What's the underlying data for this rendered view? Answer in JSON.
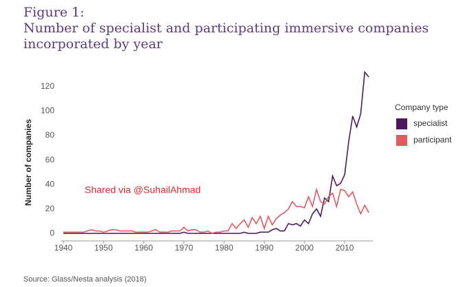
{
  "chart_data": {
    "type": "line",
    "title": "Figure 1:",
    "subtitle": [
      "Number of specialist and participating immersive companies",
      "incorporated by year"
    ],
    "ylabel": "Number of companies",
    "annotation": "Shared via @SuhailAhmad",
    "source": "Source: Glass/Nesta analysis (2018)",
    "legend_title": "Company type",
    "legend": "right",
    "grid": false,
    "x": [
      1940,
      1941,
      1942,
      1943,
      1944,
      1945,
      1946,
      1947,
      1948,
      1949,
      1950,
      1951,
      1952,
      1953,
      1954,
      1955,
      1956,
      1957,
      1958,
      1959,
      1960,
      1961,
      1962,
      1963,
      1964,
      1965,
      1966,
      1967,
      1968,
      1969,
      1970,
      1971,
      1972,
      1973,
      1974,
      1975,
      1976,
      1977,
      1978,
      1979,
      1980,
      1981,
      1982,
      1983,
      1984,
      1985,
      1986,
      1987,
      1988,
      1989,
      1990,
      1991,
      1992,
      1993,
      1994,
      1995,
      1996,
      1997,
      1998,
      1999,
      2000,
      2001,
      2002,
      2003,
      2004,
      2005,
      2006,
      2007,
      2008,
      2009,
      2010,
      2011,
      2012,
      2013,
      2014,
      2015,
      2016
    ],
    "series": [
      {
        "name": "specialist",
        "color": "#4a1a5c",
        "values": [
          0,
          0,
          0,
          0,
          0,
          0,
          0,
          0,
          0,
          0,
          0,
          0,
          0,
          0,
          0,
          0,
          0,
          0,
          0,
          0,
          0,
          0,
          0,
          0,
          0,
          0,
          0,
          0,
          0,
          0,
          1,
          0,
          0,
          0,
          0,
          0,
          0,
          0,
          0,
          0,
          0,
          0,
          0,
          0,
          0,
          1,
          0,
          0,
          0,
          1,
          1,
          1,
          3,
          4,
          2,
          2,
          8,
          7,
          8,
          6,
          11,
          8,
          16,
          20,
          14,
          29,
          26,
          47,
          39,
          41,
          48,
          75,
          96,
          87,
          98,
          132,
          128
        ]
      },
      {
        "name": "participant",
        "color": "#e05a60",
        "values": [
          1,
          1,
          1,
          1,
          1,
          1,
          2,
          3,
          2,
          2,
          1,
          2,
          3,
          3,
          2,
          2,
          2,
          2,
          1,
          1,
          1,
          1,
          2,
          3,
          1,
          1,
          1,
          2,
          2,
          2,
          5,
          2,
          3,
          3,
          1,
          1,
          2,
          0,
          1,
          1,
          2,
          2,
          8,
          4,
          8,
          11,
          5,
          13,
          8,
          14,
          4,
          14,
          7,
          12,
          15,
          17,
          20,
          26,
          22,
          22,
          21,
          30,
          22,
          36,
          26,
          24,
          30,
          33,
          22,
          36,
          35,
          30,
          34,
          24,
          16,
          23,
          17
        ]
      }
    ],
    "xlim": [
      1940,
      2017
    ],
    "xticks": [
      1940,
      1950,
      1960,
      1970,
      1980,
      1990,
      2000,
      2010
    ],
    "ylim": [
      -5,
      135
    ],
    "yticks": [
      0,
      20,
      40,
      60,
      80,
      100,
      120
    ]
  }
}
